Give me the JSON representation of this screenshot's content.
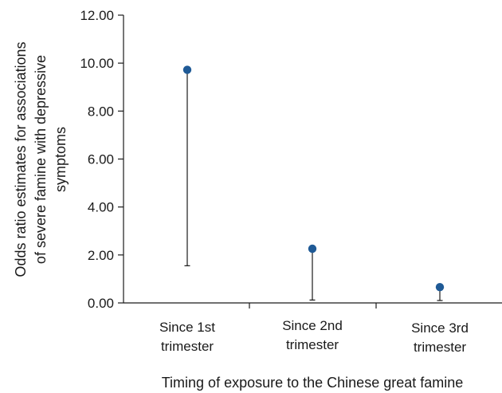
{
  "chart_data": {
    "type": "scatter",
    "title": "",
    "xlabel": "Timing of exposure to the Chinese great famine",
    "ylabel_lines": [
      "Odds ratio estimates for associations",
      "of severe famine with depressive",
      "symptoms"
    ],
    "ylim": [
      0,
      12
    ],
    "yticks": [
      "0.00",
      "2.00",
      "4.00",
      "6.00",
      "8.00",
      "10.00",
      "12.00"
    ],
    "grid": false,
    "legend": "none",
    "point_color": "#1f5a96",
    "categories": [
      [
        "Since 1st",
        "trimester"
      ],
      [
        "Since 2nd",
        "trimester"
      ],
      [
        "Since 3rd",
        "trimester"
      ]
    ],
    "series": [
      {
        "values": [
          9.72,
          2.26,
          0.66
        ],
        "lower": [
          1.55,
          0.12,
          0.1
        ]
      }
    ]
  }
}
